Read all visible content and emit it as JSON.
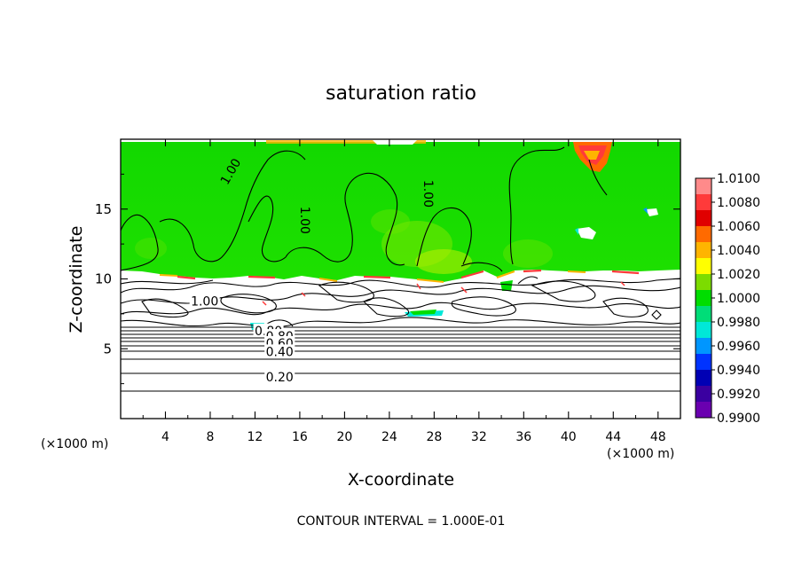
{
  "chart_data": {
    "type": "heatmap",
    "title": "saturation ratio",
    "xlabel": "X-coordinate",
    "ylabel": "Z-coordinate",
    "x_unit_left": "(×1000 m)",
    "x_unit_right": "(×1000 m)",
    "xlim": [
      0,
      50
    ],
    "ylim": [
      0,
      20
    ],
    "x_ticks": [
      4,
      8,
      12,
      16,
      20,
      24,
      28,
      32,
      36,
      40,
      44,
      48
    ],
    "y_ticks": [
      5,
      10,
      15
    ],
    "footer": "CONTOUR INTERVAL = 1.000E-01",
    "colorbar": {
      "labels": [
        "1.0100",
        "1.0080",
        "1.0060",
        "1.0040",
        "1.0020",
        "1.0000",
        "0.9980",
        "0.9960",
        "0.9940",
        "0.9920",
        "0.9900"
      ],
      "colors": [
        "#ff8a8a",
        "#ff3a3a",
        "#e00000",
        "#ff6a00",
        "#ffb400",
        "#ffff00",
        "#7cdc00",
        "#00dd00",
        "#00dd78",
        "#00e8d8",
        "#0096ff",
        "#0033ff",
        "#0000b4",
        "#3a00a0",
        "#6a00b0"
      ]
    },
    "contour_labels": [
      {
        "text": "1.00",
        "x": 9.8,
        "y": 17.7,
        "rotate": -60
      },
      {
        "text": "1.00",
        "x": 16.5,
        "y": 14.2,
        "rotate": 90
      },
      {
        "text": "1.00",
        "x": 27.5,
        "y": 16.1,
        "rotate": 90
      },
      {
        "text": "1.00",
        "x": 7.5,
        "y": 8.4,
        "rotate": 0
      },
      {
        "text": "0.80",
        "x": 13.2,
        "y": 6.3,
        "rotate": 0
      },
      {
        "text": "0.80",
        "x": 14.2,
        "y": 5.9,
        "rotate": 0
      },
      {
        "text": "0.60",
        "x": 14.2,
        "y": 5.4,
        "rotate": 0
      },
      {
        "text": "0.40",
        "x": 14.2,
        "y": 4.8,
        "rotate": 0
      },
      {
        "text": "0.20",
        "x": 14.2,
        "y": 3.0,
        "rotate": 0
      }
    ]
  }
}
